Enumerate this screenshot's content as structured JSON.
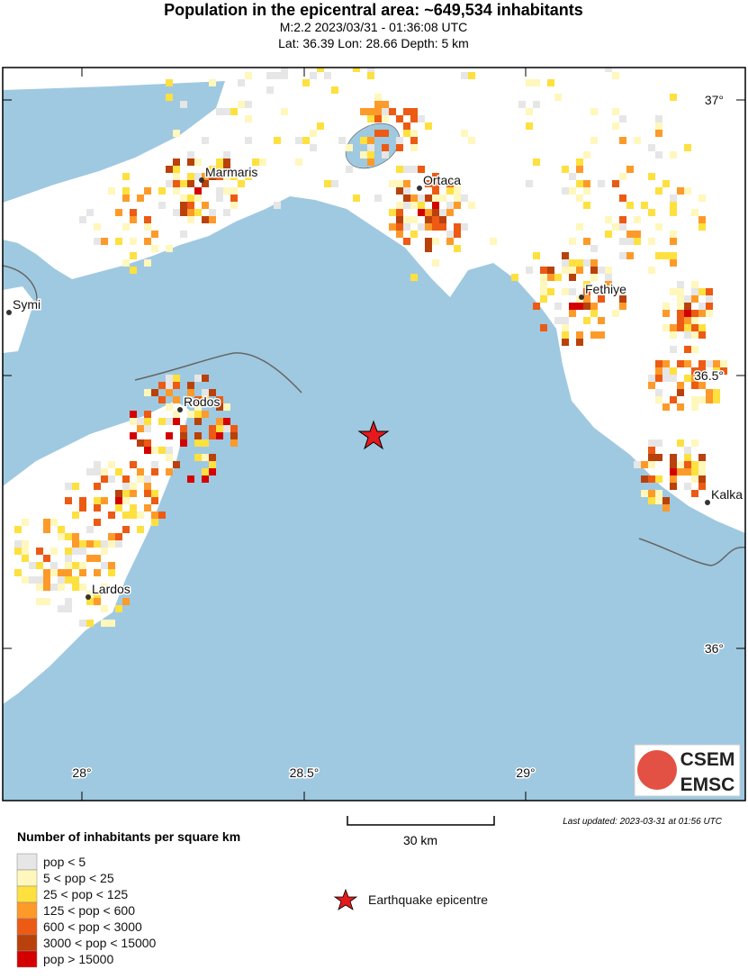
{
  "header": {
    "title": "Population in the epicentral area: ~649,534 inhabitants",
    "line1": "M:2.2 2023/03/31 - 01:36:08 UTC",
    "line2": "Lat: 36.39 Lon: 28.66 Depth: 5 km"
  },
  "map": {
    "places": [
      "Marmaris",
      "Ortaca",
      "Fethiye",
      "Symi",
      "Rodos",
      "Lardos",
      "Kalka"
    ],
    "lat_labels": [
      "37°",
      "36.5°",
      "36°"
    ],
    "lon_labels": [
      "28°",
      "28.5°",
      "29°"
    ]
  },
  "scale": {
    "label": "30 km"
  },
  "last_updated": "Last updated: 2023-03-31 at 01:56 UTC",
  "logo": {
    "top": "CSEM",
    "bottom": "EMSC"
  },
  "legend": {
    "title": "Number of inhabitants per square km",
    "items": [
      {
        "label": "pop < 5",
        "color": "#e6e6e6"
      },
      {
        "label": "5 < pop < 25",
        "color": "#fff7bc"
      },
      {
        "label": "25 < pop < 125",
        "color": "#fee03f"
      },
      {
        "label": "125 < pop < 600",
        "color": "#fd9a29"
      },
      {
        "label": "600 < pop < 3000",
        "color": "#ec5a14"
      },
      {
        "label": "3000 < pop < 15000",
        "color": "#b8410c"
      },
      {
        "label": "pop > 15000",
        "color": "#d40000"
      }
    ],
    "epicentre": "Earthquake epicentre"
  }
}
